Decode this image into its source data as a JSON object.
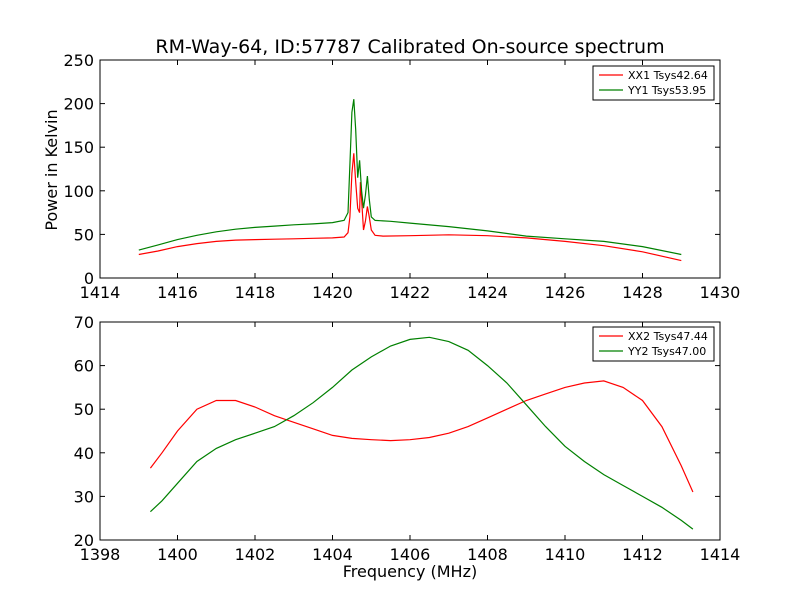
{
  "chart_data": [
    {
      "type": "line",
      "title": "RM-Way-64, ID:57787 Calibrated On-source spectrum",
      "xlabel": "",
      "ylabel": "Power in Kelvin",
      "xlim": [
        1414,
        1430
      ],
      "ylim": [
        0,
        250
      ],
      "xticks": [
        "1414",
        "1416",
        "1418",
        "1420",
        "1422",
        "1424",
        "1426",
        "1428",
        "1430"
      ],
      "yticks": [
        "0",
        "50",
        "100",
        "150",
        "200",
        "250"
      ],
      "legend_position": "top-right",
      "grid": false,
      "series": [
        {
          "name": "XX1 Tsys42.64",
          "color": "#ff0000",
          "points": [
            [
              1415.0,
              27
            ],
            [
              1415.5,
              31
            ],
            [
              1416.0,
              36
            ],
            [
              1416.5,
              39.5
            ],
            [
              1417.0,
              42
            ],
            [
              1417.5,
              43.5
            ],
            [
              1418.0,
              44
            ],
            [
              1418.5,
              44.5
            ],
            [
              1419.0,
              45
            ],
            [
              1419.5,
              45.5
            ],
            [
              1420.0,
              46
            ],
            [
              1420.3,
              47
            ],
            [
              1420.4,
              52
            ],
            [
              1420.45,
              70
            ],
            [
              1420.5,
              120
            ],
            [
              1420.55,
              143
            ],
            [
              1420.6,
              110
            ],
            [
              1420.65,
              80
            ],
            [
              1420.7,
              75
            ],
            [
              1420.72,
              110
            ],
            [
              1420.75,
              90
            ],
            [
              1420.8,
              55
            ],
            [
              1420.85,
              65
            ],
            [
              1420.9,
              82
            ],
            [
              1420.95,
              70
            ],
            [
              1421.0,
              55
            ],
            [
              1421.1,
              49
            ],
            [
              1421.3,
              48
            ],
            [
              1422.0,
              48.5
            ],
            [
              1423.0,
              49.5
            ],
            [
              1424.0,
              48.5
            ],
            [
              1425.0,
              46
            ],
            [
              1426.0,
              42
            ],
            [
              1427.0,
              37
            ],
            [
              1428.0,
              30
            ],
            [
              1429.0,
              20
            ]
          ]
        },
        {
          "name": "YY1 Tsys53.95",
          "color": "#008000",
          "points": [
            [
              1415.0,
              32
            ],
            [
              1415.5,
              38
            ],
            [
              1416.0,
              44
            ],
            [
              1416.5,
              49
            ],
            [
              1417.0,
              53
            ],
            [
              1417.5,
              56
            ],
            [
              1418.0,
              58
            ],
            [
              1418.5,
              59.5
            ],
            [
              1419.0,
              61
            ],
            [
              1419.5,
              62
            ],
            [
              1420.0,
              63.5
            ],
            [
              1420.3,
              66
            ],
            [
              1420.4,
              75
            ],
            [
              1420.45,
              130
            ],
            [
              1420.5,
              190
            ],
            [
              1420.55,
              205
            ],
            [
              1420.6,
              170
            ],
            [
              1420.65,
              115
            ],
            [
              1420.7,
              135
            ],
            [
              1420.75,
              100
            ],
            [
              1420.8,
              80
            ],
            [
              1420.85,
              95
            ],
            [
              1420.9,
              117
            ],
            [
              1420.95,
              90
            ],
            [
              1421.0,
              70
            ],
            [
              1421.1,
              66
            ],
            [
              1421.5,
              65
            ],
            [
              1422.0,
              63
            ],
            [
              1423.0,
              59
            ],
            [
              1424.0,
              54
            ],
            [
              1425.0,
              48
            ],
            [
              1426.0,
              45
            ],
            [
              1427.0,
              42
            ],
            [
              1428.0,
              36
            ],
            [
              1429.0,
              27
            ]
          ]
        }
      ]
    },
    {
      "type": "line",
      "title": "",
      "xlabel": "Frequency (MHz)",
      "ylabel": "",
      "xlim": [
        1398,
        1414
      ],
      "ylim": [
        20,
        70
      ],
      "xticks": [
        "1398",
        "1400",
        "1402",
        "1404",
        "1406",
        "1408",
        "1410",
        "1412",
        "1414"
      ],
      "yticks": [
        "20",
        "30",
        "40",
        "50",
        "60",
        "70"
      ],
      "legend_position": "top-right",
      "grid": false,
      "series": [
        {
          "name": "XX2 Tsys47.44",
          "color": "#ff0000",
          "points": [
            [
              1399.3,
              36.5
            ],
            [
              1399.6,
              40
            ],
            [
              1400.0,
              45
            ],
            [
              1400.5,
              50
            ],
            [
              1401.0,
              52
            ],
            [
              1401.5,
              52
            ],
            [
              1402.0,
              50.5
            ],
            [
              1402.5,
              48.5
            ],
            [
              1403.0,
              47
            ],
            [
              1403.5,
              45.5
            ],
            [
              1404.0,
              44
            ],
            [
              1404.5,
              43.3
            ],
            [
              1405.0,
              43
            ],
            [
              1405.5,
              42.8
            ],
            [
              1406.0,
              43
            ],
            [
              1406.5,
              43.5
            ],
            [
              1407.0,
              44.5
            ],
            [
              1407.5,
              46
            ],
            [
              1408.0,
              48
            ],
            [
              1408.5,
              50
            ],
            [
              1409.0,
              52
            ],
            [
              1409.5,
              53.5
            ],
            [
              1410.0,
              55
            ],
            [
              1410.5,
              56
            ],
            [
              1411.0,
              56.5
            ],
            [
              1411.5,
              55
            ],
            [
              1412.0,
              52
            ],
            [
              1412.5,
              46
            ],
            [
              1413.0,
              37
            ],
            [
              1413.3,
              31
            ]
          ]
        },
        {
          "name": "YY2 Tsys47.00",
          "color": "#008000",
          "points": [
            [
              1399.3,
              26.5
            ],
            [
              1399.6,
              29
            ],
            [
              1400.0,
              33
            ],
            [
              1400.5,
              38
            ],
            [
              1401.0,
              41
            ],
            [
              1401.5,
              43
            ],
            [
              1402.0,
              44.5
            ],
            [
              1402.5,
              46
            ],
            [
              1403.0,
              48.5
            ],
            [
              1403.5,
              51.5
            ],
            [
              1404.0,
              55
            ],
            [
              1404.5,
              59
            ],
            [
              1405.0,
              62
            ],
            [
              1405.5,
              64.5
            ],
            [
              1406.0,
              66
            ],
            [
              1406.5,
              66.5
            ],
            [
              1407.0,
              65.5
            ],
            [
              1407.5,
              63.5
            ],
            [
              1408.0,
              60
            ],
            [
              1408.5,
              56
            ],
            [
              1409.0,
              51
            ],
            [
              1409.5,
              46
            ],
            [
              1410.0,
              41.5
            ],
            [
              1410.5,
              38
            ],
            [
              1411.0,
              35
            ],
            [
              1411.5,
              32.5
            ],
            [
              1412.0,
              30
            ],
            [
              1412.5,
              27.5
            ],
            [
              1413.0,
              24.5
            ],
            [
              1413.3,
              22.5
            ]
          ]
        }
      ]
    }
  ]
}
